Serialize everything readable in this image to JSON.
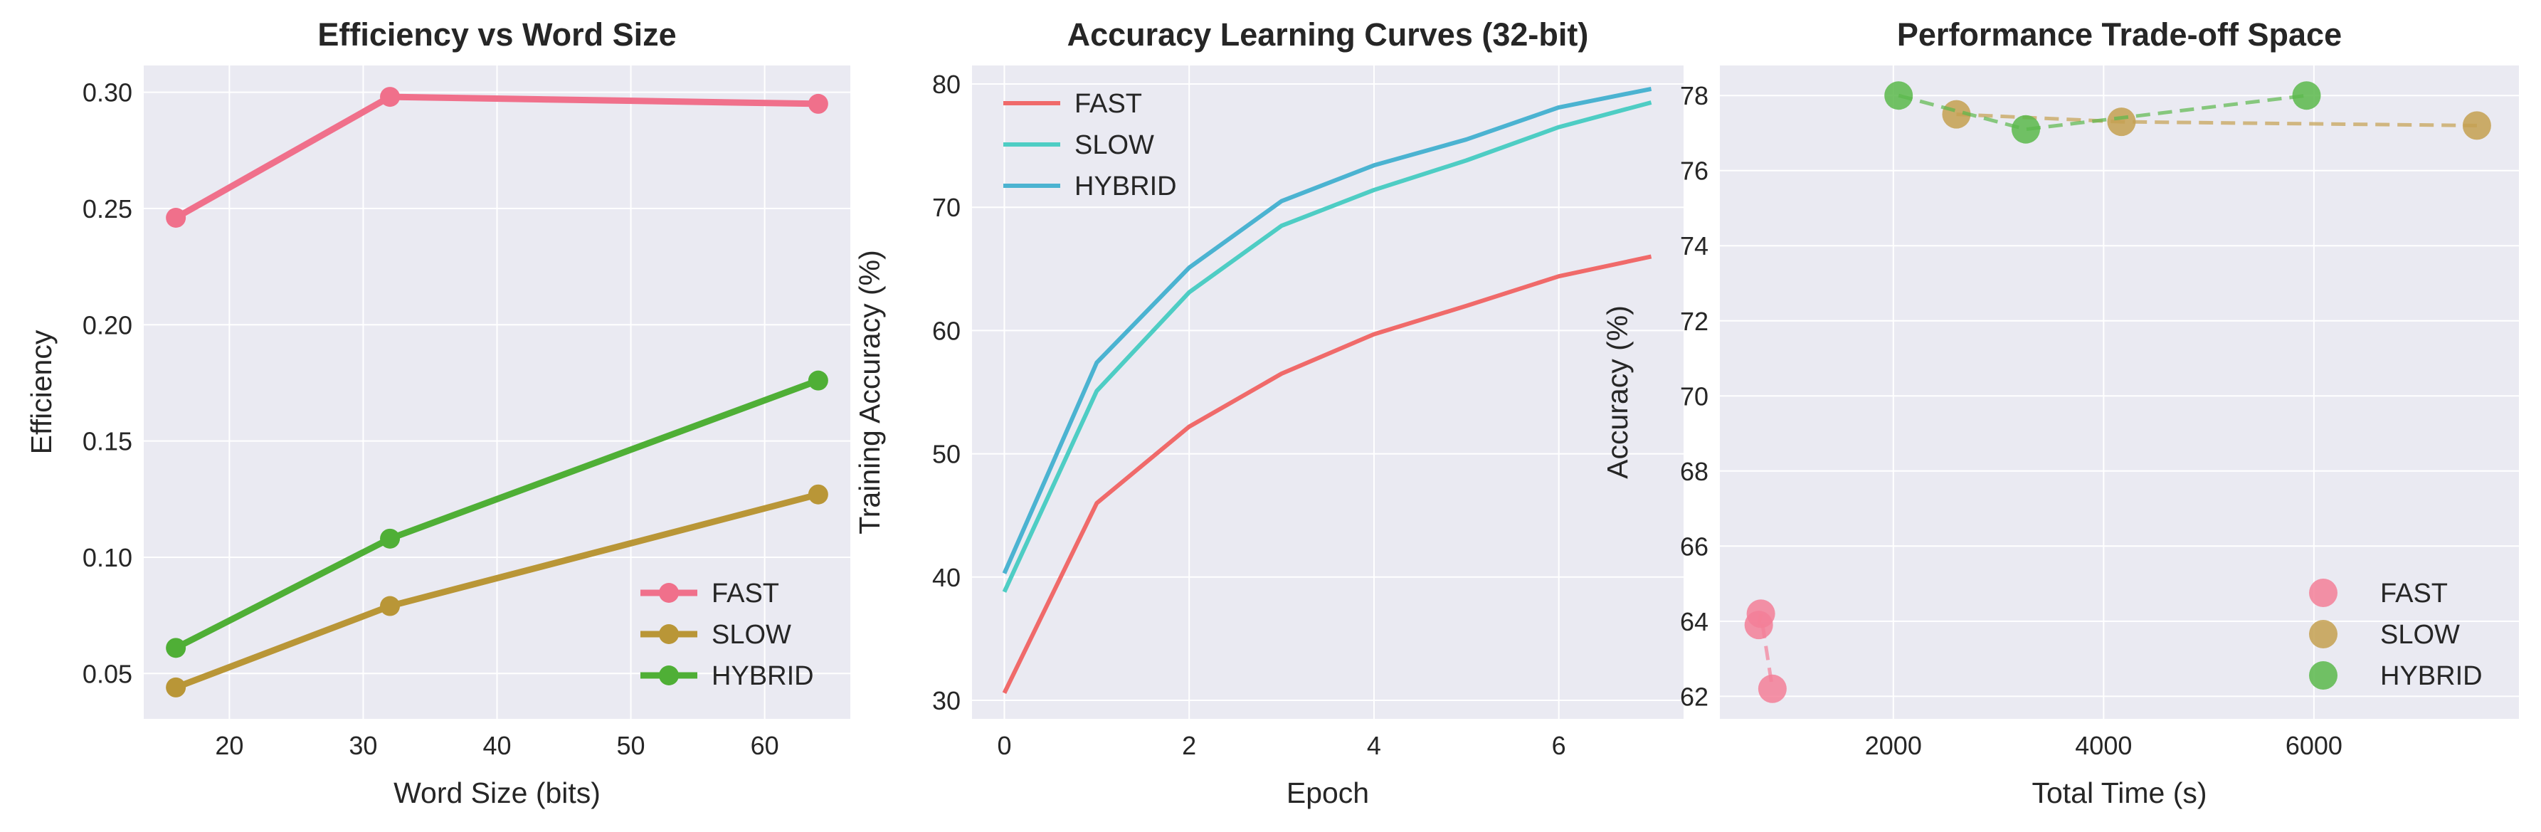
{
  "chart_data": [
    {
      "type": "line",
      "title": "Efficiency vs Word Size",
      "xlabel": "Word Size (bits)",
      "ylabel": "Efficiency",
      "xlim": [
        13.6,
        66.4
      ],
      "ylim": [
        0.0305,
        0.3115
      ],
      "xticks": [
        20,
        30,
        40,
        50,
        60
      ],
      "yticks": [
        0.05,
        0.1,
        0.15,
        0.2,
        0.25,
        0.3
      ],
      "ytick_labels": [
        "0.05",
        "0.10",
        "0.15",
        "0.20",
        "0.25",
        "0.30"
      ],
      "grid": true,
      "legend": "lower-right",
      "series": [
        {
          "name": "FAST",
          "color": "#f0708b",
          "x": [
            16,
            32,
            64
          ],
          "y": [
            0.246,
            0.298,
            0.295
          ]
        },
        {
          "name": "SLOW",
          "color": "#b99637",
          "x": [
            16,
            32,
            64
          ],
          "y": [
            0.044,
            0.079,
            0.127
          ]
        },
        {
          "name": "HYBRID",
          "color": "#4faf36",
          "x": [
            16,
            32,
            64
          ],
          "y": [
            0.061,
            0.108,
            0.176
          ]
        }
      ]
    },
    {
      "type": "line",
      "title": "Accuracy Learning Curves (32-bit)",
      "xlabel": "Epoch",
      "ylabel": "Training Accuracy (%)",
      "xlim": [
        -0.35,
        7.35
      ],
      "ylim": [
        28.5,
        81.5
      ],
      "xticks": [
        0,
        2,
        4,
        6
      ],
      "yticks": [
        30,
        40,
        50,
        60,
        70,
        80
      ],
      "grid": true,
      "legend": "upper-left",
      "series": [
        {
          "name": "FAST",
          "color": "#f06a6a",
          "x": [
            0,
            1,
            2,
            3,
            4,
            5,
            6,
            7
          ],
          "y": [
            30.6,
            46.0,
            52.2,
            56.5,
            59.7,
            62.0,
            64.4,
            66.0
          ]
        },
        {
          "name": "SLOW",
          "color": "#4ecdc4",
          "x": [
            0,
            1,
            2,
            3,
            4,
            5,
            6,
            7
          ],
          "y": [
            38.8,
            55.1,
            63.1,
            68.5,
            71.4,
            73.8,
            76.5,
            78.5
          ]
        },
        {
          "name": "HYBRID",
          "color": "#4bb3d1",
          "x": [
            0,
            1,
            2,
            3,
            4,
            5,
            6,
            7
          ],
          "y": [
            40.3,
            57.4,
            65.1,
            70.5,
            73.4,
            75.5,
            78.1,
            79.6
          ]
        }
      ]
    },
    {
      "type": "scatter",
      "title": "Performance Trade-off Space",
      "xlabel": "Total Time (s)",
      "ylabel": "Accuracy (%)",
      "xlim": [
        350,
        7950
      ],
      "ylim": [
        61.4,
        78.8
      ],
      "xticks": [
        2000,
        4000,
        6000
      ],
      "yticks": [
        62,
        64,
        66,
        68,
        70,
        72,
        74,
        76,
        78
      ],
      "grid": true,
      "legend": "lower-right",
      "series": [
        {
          "name": "FAST",
          "color": "#f37f98",
          "x": [
            720,
            740,
            850
          ],
          "y": [
            63.9,
            64.2,
            62.2
          ]
        },
        {
          "name": "SLOW",
          "color": "#c4a050",
          "x": [
            2600,
            4170,
            7550
          ],
          "y": [
            77.5,
            77.3,
            77.2
          ]
        },
        {
          "name": "HYBRID",
          "color": "#5bb84b",
          "x": [
            2050,
            3260,
            5930
          ],
          "y": [
            78.0,
            77.1,
            78.0
          ]
        }
      ]
    }
  ]
}
